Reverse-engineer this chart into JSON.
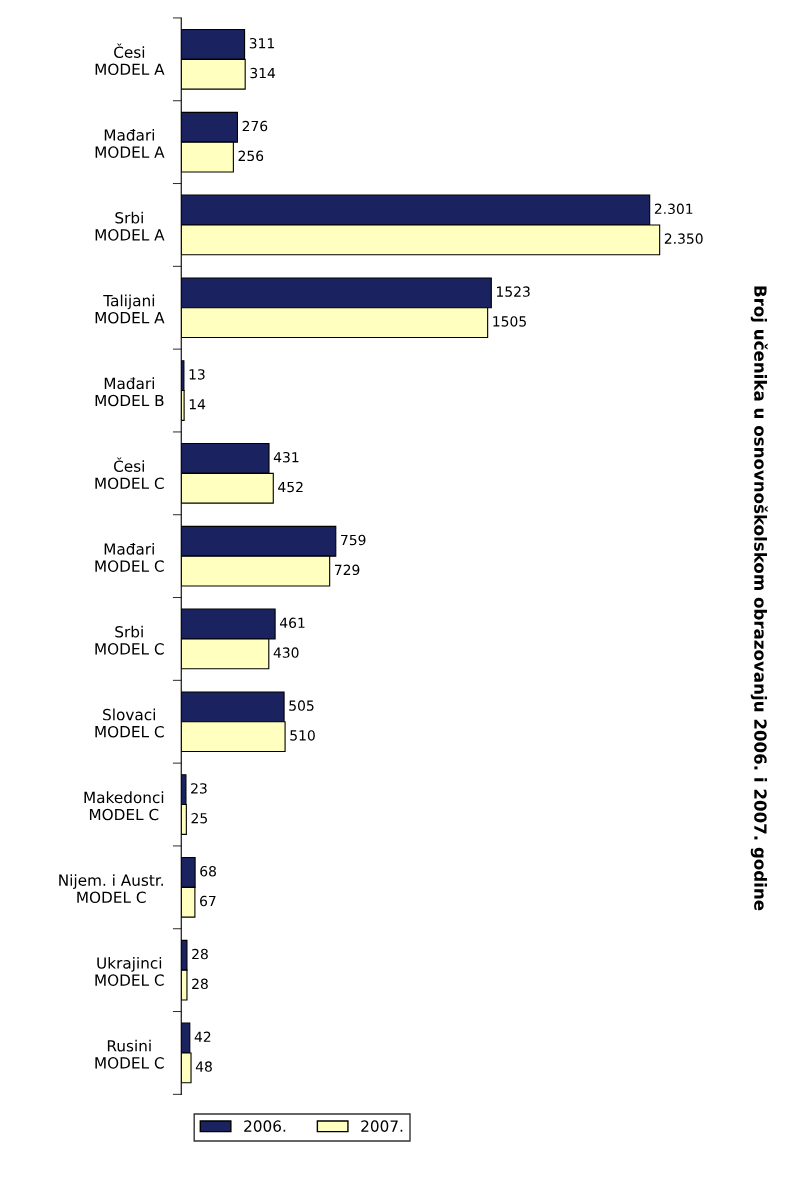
{
  "chart_data": {
    "type": "bar",
    "orientation": "horizontal",
    "title": "Broj učenika u osnovnoškolskom obrazovanju 2006. i 2007. godine",
    "categories": [
      "Česi\nMODEL A",
      "Mađari\nMODEL A",
      "Srbi\nMODEL A",
      "Talijani\nMODEL A",
      "Mađari\nMODEL B",
      "Česi\nMODEL C",
      "Mađari\nMODEL C",
      "Srbi\nMODEL C",
      "Slovaci\nMODEL C",
      "Makedonci\nMODEL C",
      "Nijem. i Austr.\nMODEL C",
      "Ukrajinci\nMODEL C",
      "Rusini\nMODEL C"
    ],
    "series": [
      {
        "name": "2006.",
        "color": "#1a2360",
        "values": [
          311,
          276,
          2301,
          1523,
          13,
          431,
          759,
          461,
          505,
          23,
          68,
          28,
          42
        ],
        "value_labels": [
          "311",
          "276",
          "2.301",
          "1523",
          "13",
          "431",
          "759",
          "461",
          "505",
          "23",
          "68",
          "28",
          "42"
        ]
      },
      {
        "name": "2007.",
        "color": "#ffffc0",
        "values": [
          314,
          256,
          2350,
          1505,
          14,
          452,
          729,
          430,
          510,
          25,
          67,
          28,
          48
        ],
        "value_labels": [
          "314",
          "256",
          "2.350",
          "1505",
          "14",
          "452",
          "729",
          "430",
          "510",
          "25",
          "67",
          "28",
          "48"
        ]
      }
    ],
    "legend": "bottom",
    "grid": false
  }
}
